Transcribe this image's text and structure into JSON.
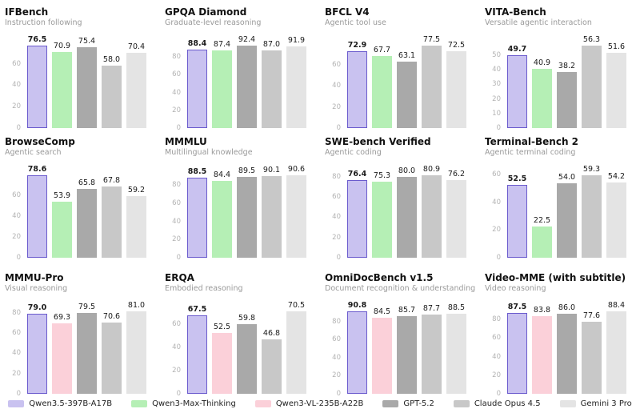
{
  "page": {
    "background": "#ffffff"
  },
  "models": {
    "qwen35": {
      "label": "Qwen3.5-397B-A17B",
      "color": "#c9c2f0",
      "border": "#6a5acd",
      "bold_value_labels": true
    },
    "qwen3max": {
      "label": "Qwen3-Max-Thinking",
      "color": "#b5efb5",
      "border": null,
      "bold_value_labels": false
    },
    "qwen3vl": {
      "label": "Qwen3-VL-235B-A22B",
      "color": "#fbd0d9",
      "border": null,
      "bold_value_labels": false
    },
    "gpt52": {
      "label": "GPT-5.2",
      "color": "#a9a9a9",
      "border": null,
      "bold_value_labels": false
    },
    "claude": {
      "label": "Claude Opus 4.5",
      "color": "#c8c8c8",
      "border": null,
      "bold_value_labels": false
    },
    "gemini": {
      "label": "Gemini 3 Pro",
      "color": "#e4e4e4",
      "border": null,
      "bold_value_labels": false
    }
  },
  "legend_order": [
    "qwen35",
    "qwen3max",
    "qwen3vl",
    "gpt52",
    "claude",
    "gemini"
  ],
  "chart_data": [
    {
      "type": "bar",
      "title": "IFBench",
      "subtitle": "Instruction following",
      "yticks": [
        0,
        20,
        40,
        60
      ],
      "ylim": [
        0,
        80.5
      ],
      "grid": false,
      "series": [
        {
          "model": "qwen35",
          "value": 76.5
        },
        {
          "model": "qwen3max",
          "value": 70.9
        },
        {
          "model": "gpt52",
          "value": 75.4
        },
        {
          "model": "claude",
          "value": 58.0
        },
        {
          "model": "gemini",
          "value": 70.4
        }
      ]
    },
    {
      "type": "bar",
      "title": "GPQA Diamond",
      "subtitle": "Graduate-level reasoning",
      "yticks": [
        0,
        20,
        40,
        60,
        80
      ],
      "ylim": [
        0,
        97.3
      ],
      "grid": false,
      "series": [
        {
          "model": "qwen35",
          "value": 88.4
        },
        {
          "model": "qwen3max",
          "value": 87.4
        },
        {
          "model": "gpt52",
          "value": 92.4
        },
        {
          "model": "claude",
          "value": 87.0
        },
        {
          "model": "gemini",
          "value": 91.9
        }
      ]
    },
    {
      "type": "bar",
      "title": "BFCL V4",
      "subtitle": "Agentic tool use",
      "yticks": [
        0,
        20,
        40,
        60
      ],
      "ylim": [
        0,
        81.6
      ],
      "grid": false,
      "series": [
        {
          "model": "qwen35",
          "value": 72.9
        },
        {
          "model": "qwen3max",
          "value": 67.7
        },
        {
          "model": "gpt52",
          "value": 63.1
        },
        {
          "model": "claude",
          "value": 77.5
        },
        {
          "model": "gemini",
          "value": 72.5
        }
      ]
    },
    {
      "type": "bar",
      "title": "VITA-Bench",
      "subtitle": "Versatile agentic interaction",
      "yticks": [
        0,
        10,
        20,
        30,
        40,
        50
      ],
      "ylim": [
        0,
        59.3
      ],
      "grid": false,
      "series": [
        {
          "model": "qwen35",
          "value": 49.7
        },
        {
          "model": "qwen3max",
          "value": 40.9
        },
        {
          "model": "gpt52",
          "value": 38.2
        },
        {
          "model": "claude",
          "value": 56.3
        },
        {
          "model": "gemini",
          "value": 51.6
        }
      ]
    },
    {
      "type": "bar",
      "title": "BrowseComp",
      "subtitle": "Agentic search",
      "yticks": [
        0,
        20,
        40,
        60
      ],
      "ylim": [
        0,
        82.7
      ],
      "grid": false,
      "series": [
        {
          "model": "qwen35",
          "value": 78.6
        },
        {
          "model": "qwen3max",
          "value": 53.9
        },
        {
          "model": "gpt52",
          "value": 65.8
        },
        {
          "model": "claude",
          "value": 67.8
        },
        {
          "model": "gemini",
          "value": 59.2
        }
      ]
    },
    {
      "type": "bar",
      "title": "MMMLU",
      "subtitle": "Multilingual knowledge",
      "yticks": [
        0,
        20,
        40,
        60,
        80
      ],
      "ylim": [
        0,
        95.4
      ],
      "grid": false,
      "series": [
        {
          "model": "qwen35",
          "value": 88.5
        },
        {
          "model": "qwen3max",
          "value": 84.4
        },
        {
          "model": "gpt52",
          "value": 89.5
        },
        {
          "model": "claude",
          "value": 90.1
        },
        {
          "model": "gemini",
          "value": 90.6
        }
      ]
    },
    {
      "type": "bar",
      "title": "SWE-bench Verified",
      "subtitle": "Agentic coding",
      "yticks": [
        0,
        20,
        40,
        60,
        80
      ],
      "ylim": [
        0,
        85.2
      ],
      "grid": false,
      "series": [
        {
          "model": "qwen35",
          "value": 76.4
        },
        {
          "model": "qwen3max",
          "value": 75.3
        },
        {
          "model": "gpt52",
          "value": 80.0
        },
        {
          "model": "claude",
          "value": 80.9
        },
        {
          "model": "gemini",
          "value": 76.2
        }
      ]
    },
    {
      "type": "bar",
      "title": "Terminal-Bench 2",
      "subtitle": "Agentic terminal coding",
      "yticks": [
        0,
        20,
        40,
        60
      ],
      "ylim": [
        0,
        62.4
      ],
      "grid": false,
      "series": [
        {
          "model": "qwen35",
          "value": 52.5
        },
        {
          "model": "qwen3max",
          "value": 22.5
        },
        {
          "model": "gpt52",
          "value": 54.0
        },
        {
          "model": "claude",
          "value": 59.3
        },
        {
          "model": "gemini",
          "value": 54.2
        }
      ]
    },
    {
      "type": "bar",
      "title": "MMMU-Pro",
      "subtitle": "Visual reasoning",
      "yticks": [
        0,
        20,
        40,
        60,
        80
      ],
      "ylim": [
        0,
        85.3
      ],
      "grid": false,
      "series": [
        {
          "model": "qwen35",
          "value": 79.0
        },
        {
          "model": "qwen3vl",
          "value": 69.3
        },
        {
          "model": "gpt52",
          "value": 79.5
        },
        {
          "model": "claude",
          "value": 70.6
        },
        {
          "model": "gemini",
          "value": 81.0
        }
      ]
    },
    {
      "type": "bar",
      "title": "ERQA",
      "subtitle": "Embodied reasoning",
      "yticks": [
        0,
        20,
        40,
        60
      ],
      "ylim": [
        0,
        74.2
      ],
      "grid": false,
      "series": [
        {
          "model": "qwen35",
          "value": 67.5
        },
        {
          "model": "qwen3vl",
          "value": 52.5
        },
        {
          "model": "gpt52",
          "value": 59.8
        },
        {
          "model": "claude",
          "value": 46.8
        },
        {
          "model": "gemini",
          "value": 70.5
        }
      ]
    },
    {
      "type": "bar",
      "title": "OmniDocBench v1.5",
      "subtitle": "Document recognition & understanding",
      "yticks": [
        0,
        20,
        40,
        60,
        80
      ],
      "ylim": [
        0,
        95.6
      ],
      "grid": false,
      "series": [
        {
          "model": "qwen35",
          "value": 90.8
        },
        {
          "model": "qwen3vl",
          "value": 84.5
        },
        {
          "model": "gpt52",
          "value": 85.7
        },
        {
          "model": "claude",
          "value": 87.7
        },
        {
          "model": "gemini",
          "value": 88.5
        }
      ]
    },
    {
      "type": "bar",
      "title": "Video-MME (with subtitle)",
      "subtitle": "Video reasoning",
      "yticks": [
        0,
        20,
        40,
        60,
        80
      ],
      "ylim": [
        0,
        93.1
      ],
      "grid": false,
      "series": [
        {
          "model": "qwen35",
          "value": 87.5
        },
        {
          "model": "qwen3vl",
          "value": 83.8
        },
        {
          "model": "gpt52",
          "value": 86.0
        },
        {
          "model": "claude",
          "value": 77.6
        },
        {
          "model": "gemini",
          "value": 88.4
        }
      ]
    }
  ]
}
